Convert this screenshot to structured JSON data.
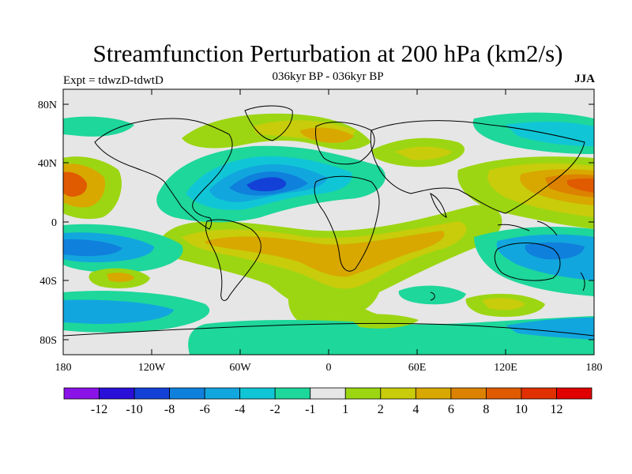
{
  "header": {
    "title": "Streamfunction Perturbation at 200 hPa (km2/s)",
    "subtitle": "036kyr BP - 036kyr BP",
    "left_label": "Expt = tdwzD-tdwtD",
    "right_label": "JJA"
  },
  "axes": {
    "y_ticks": [
      "80N",
      "40N",
      "0",
      "40S",
      "80S"
    ],
    "x_ticks": [
      "180",
      "120W",
      "60W",
      "0",
      "60E",
      "120E",
      "180"
    ]
  },
  "colorbar": {
    "labels": [
      "-12",
      "-10",
      "-8",
      "-6",
      "-4",
      "-2",
      "-1",
      "1",
      "2",
      "4",
      "6",
      "8",
      "10",
      "12"
    ],
    "colors": [
      "#8a12e8",
      "#2a0fd8",
      "#1340d6",
      "#0f80dc",
      "#12a6de",
      "#10c6d6",
      "#1ed79a",
      "#e6e6e6",
      "#9cd612",
      "#c8cc0a",
      "#d8a800",
      "#dc8200",
      "#e05a00",
      "#e03000",
      "#e00000"
    ]
  },
  "colors": {
    "neutral": "#e6e6e6",
    "green": "#9cd612",
    "yellow_green": "#c8cc0a",
    "orange": "#d8a800",
    "dark_orange": "#dc8200",
    "red_orange": "#e05a00",
    "teal": "#1ed79a",
    "cyan": "#10c6d6",
    "light_blue": "#12a6de",
    "blue": "#0f80dc",
    "deep_blue": "#1340d6"
  }
}
